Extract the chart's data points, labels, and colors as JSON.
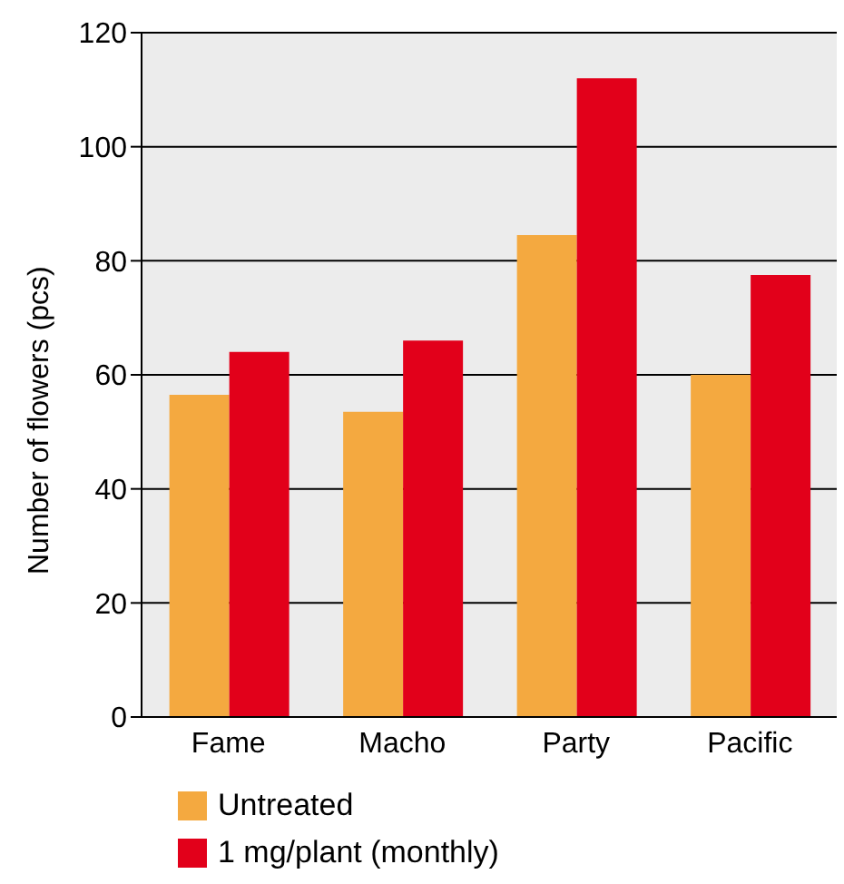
{
  "chart_data": {
    "type": "bar",
    "ylabel": "Number of flowers (pcs)",
    "categories": [
      "Fame",
      "Macho",
      "Party",
      "Pacific"
    ],
    "series": [
      {
        "name": "Untreated",
        "color": "#f4a940",
        "values": [
          56.5,
          53.5,
          84.5,
          60
        ]
      },
      {
        "name": "1 mg/plant (monthly)",
        "color": "#e2001a",
        "values": [
          64,
          66,
          112,
          77.5
        ]
      }
    ],
    "ylim": [
      0,
      120
    ],
    "yticks": [
      0,
      20,
      40,
      60,
      80,
      100,
      120
    ],
    "grid": "y",
    "legend": "bottom"
  }
}
